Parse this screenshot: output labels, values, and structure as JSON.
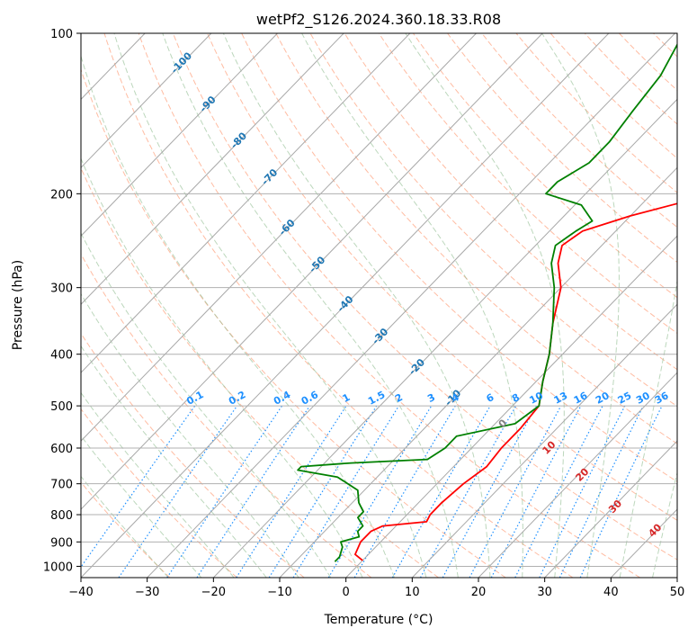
{
  "chart_data": {
    "type": "line",
    "title": "wetPf2_S126.2024.360.18.33.R08",
    "xlabel": "Temperature (°C)",
    "ylabel": "Pressure (hPa)",
    "xlim": [
      -40,
      50
    ],
    "ylim": [
      1050,
      100
    ],
    "y_scale": "log",
    "grid": true,
    "x_ticks": [
      -40,
      -30,
      -20,
      -10,
      0,
      10,
      20,
      30,
      40,
      50
    ],
    "y_ticks": [
      100,
      200,
      300,
      400,
      500,
      600,
      700,
      800,
      900,
      1000
    ],
    "colors": {
      "temperature": "#ff0000",
      "dewpoint": "#008000",
      "isotherm_label": "#1f77b4",
      "mixing_ratio": "#1e90ff",
      "dry_adiabat": "#ffa07a",
      "moist_adiabat": "#8fbc8f",
      "moist_adiabat_label": "#d62728",
      "zero_label": "#808080"
    },
    "series": [
      {
        "points": [
          [
            0,
            975
          ],
          [
            -2,
            950
          ],
          [
            -3,
            900
          ],
          [
            -3,
            860
          ],
          [
            -2,
            840
          ],
          [
            4,
            825
          ],
          [
            3.5,
            800
          ],
          [
            3.5,
            760
          ],
          [
            4,
            700
          ],
          [
            5,
            650
          ],
          [
            4.5,
            600
          ],
          [
            4.5,
            550
          ],
          [
            4,
            500
          ],
          [
            1,
            450
          ],
          [
            -2,
            400
          ],
          [
            -6,
            350
          ],
          [
            -10,
            300
          ],
          [
            -14,
            270
          ],
          [
            -16,
            250
          ],
          [
            -15,
            235
          ],
          [
            -10,
            220
          ],
          [
            -3,
            205
          ],
          [
            -3,
            190
          ],
          [
            -3,
            170
          ],
          [
            -5,
            150
          ],
          [
            -8,
            130
          ],
          [
            -12,
            110
          ],
          [
            -15,
            100
          ]
        ]
      },
      {
        "points": [
          [
            -4,
            980
          ],
          [
            -4,
            960
          ],
          [
            -5,
            920
          ],
          [
            -6,
            900
          ],
          [
            -4,
            880
          ],
          [
            -5,
            860
          ],
          [
            -5,
            840
          ],
          [
            -7,
            810
          ],
          [
            -7,
            790
          ],
          [
            -9,
            760
          ],
          [
            -11,
            720
          ],
          [
            -16,
            680
          ],
          [
            -23,
            660
          ],
          [
            -23,
            650
          ],
          [
            -16,
            640
          ],
          [
            -5,
            630
          ],
          [
            -4,
            600
          ],
          [
            -4,
            570
          ],
          [
            3,
            540
          ],
          [
            4,
            500
          ],
          [
            1,
            450
          ],
          [
            -2,
            400
          ],
          [
            -6,
            350
          ],
          [
            -11,
            300
          ],
          [
            -15,
            270
          ],
          [
            -17,
            250
          ],
          [
            -16,
            235
          ],
          [
            -15,
            225
          ],
          [
            -19,
            210
          ],
          [
            -26,
            200
          ],
          [
            -26,
            190
          ],
          [
            -24,
            175
          ],
          [
            -24,
            160
          ],
          [
            -25,
            140
          ],
          [
            -26,
            120
          ],
          [
            -28,
            105
          ],
          [
            -29,
            100
          ]
        ]
      }
    ],
    "isotherm_labels": [
      "-100",
      "-90",
      "-80",
      "-70",
      "-60",
      "-50",
      "-40",
      "-30",
      "-20",
      "-10"
    ],
    "mixing_ratio_labels": [
      "0.1",
      "0.2",
      "0.4",
      "0.6",
      "1",
      "1.5",
      "2",
      "3",
      "4",
      "6",
      "8",
      "10",
      "13",
      "16",
      "20",
      "25",
      "30",
      "36"
    ],
    "mixing_ratio_values": [
      0.1,
      0.2,
      0.4,
      0.6,
      1,
      1.5,
      2,
      3,
      4,
      6,
      8,
      10,
      13,
      16,
      20,
      25,
      30,
      36
    ],
    "moist_adiabat_labels": [
      "0",
      "10",
      "20",
      "30",
      "40"
    ]
  }
}
